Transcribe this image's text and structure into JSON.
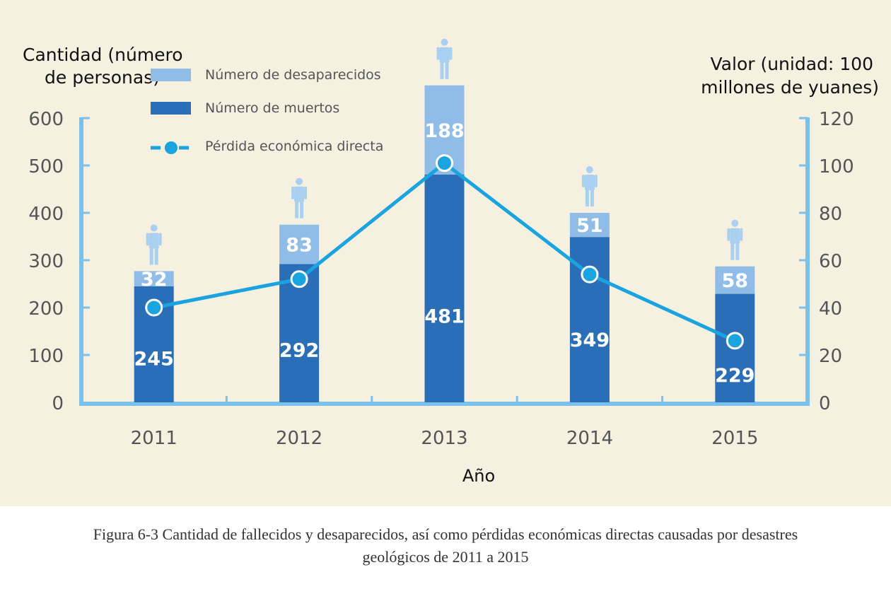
{
  "chart_data": {
    "type": "bar+line",
    "categories": [
      "2011",
      "2012",
      "2013",
      "2014",
      "2015"
    ],
    "series": [
      {
        "name": "Número de muertos",
        "type": "bar",
        "stack": "personas",
        "axis": "left",
        "values": [
          245,
          292,
          481,
          349,
          229
        ]
      },
      {
        "name": "Número de desaparecidos",
        "type": "bar",
        "stack": "personas",
        "axis": "left",
        "values": [
          32,
          83,
          188,
          51,
          58
        ]
      },
      {
        "name": "Pérdida económica directa",
        "type": "line",
        "axis": "right",
        "values": [
          40,
          52,
          101,
          54,
          26
        ]
      }
    ],
    "ylabel_left": "Cantidad (número de personas)",
    "ylabel_left_lines": [
      "Cantidad (número",
      "de personas)"
    ],
    "ylabel_right": "Valor (unidad: 100 millones de yuanes)",
    "ylabel_right_lines": [
      "Valor (unidad: 100",
      "millones de yuanes)"
    ],
    "xlabel": "Año",
    "ylim_left": [
      0,
      600
    ],
    "ylim_right": [
      0,
      120
    ],
    "yticks_left": [
      "0",
      "100",
      "200",
      "300",
      "400",
      "500",
      "600"
    ],
    "yticks_right": [
      "0",
      "20",
      "40",
      "60",
      "80",
      "100",
      "120"
    ],
    "legend_position": "top-left",
    "grid": false,
    "colors": {
      "muertos": "#2b6eb8",
      "desaparecidos": "#8fbde8",
      "line": "#19a4e0",
      "axis": "#7cc0ec",
      "person_icon": "#a9d0f0",
      "background": "#f6f0e1"
    }
  },
  "caption_lines": [
    "Figura 6-3 Cantidad de fallecidos y desaparecidos, así como pérdidas económicas directas causadas por desastres",
    "geológicos de 2011 a 2015"
  ]
}
